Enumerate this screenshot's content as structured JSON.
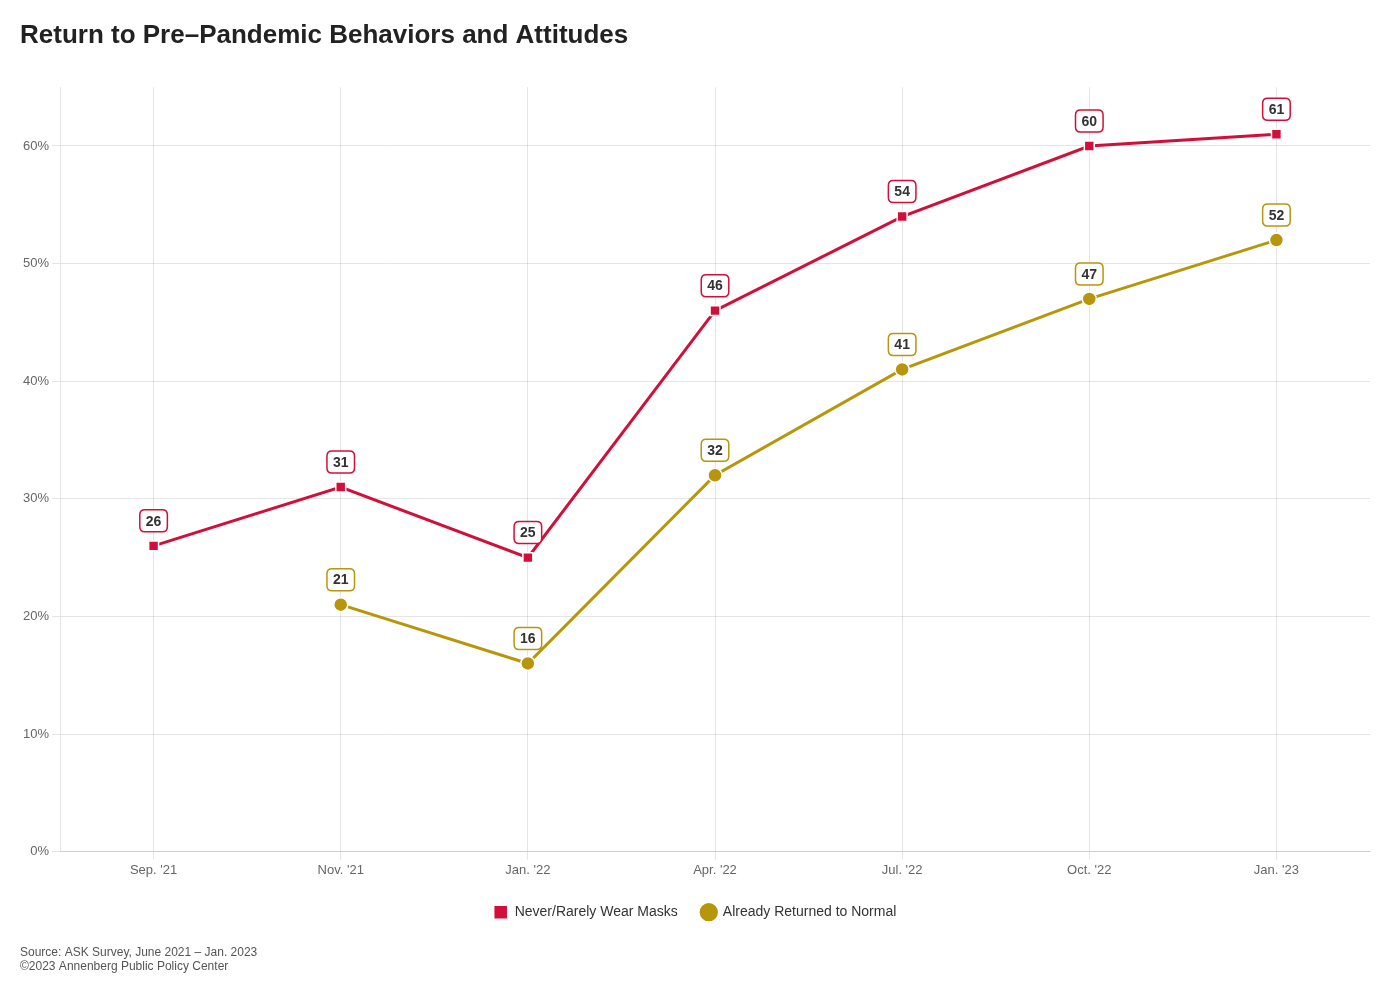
{
  "chart_data": {
    "type": "line",
    "title": "Return to Pre–Pandemic Behaviors and Attitudes",
    "categories": [
      "Sep. '21",
      "Nov. '21",
      "Jan. '22",
      "Apr. '22",
      "Jul. '22",
      "Oct. '22",
      "Jan. '23"
    ],
    "series": [
      {
        "name": "Never/Rarely Wear Masks",
        "color": "#d0103a",
        "marker": "square",
        "values": [
          26,
          31,
          25,
          46,
          54,
          60,
          61
        ]
      },
      {
        "name": "Already Returned to Normal",
        "color": "#b8960c",
        "marker": "circle",
        "values": [
          null,
          21,
          16,
          32,
          41,
          47,
          52
        ]
      }
    ],
    "ylim": [
      0,
      65
    ],
    "yticks": [
      {
        "value": 0,
        "label": "0%"
      },
      {
        "value": 10,
        "label": "10%"
      },
      {
        "value": 20,
        "label": "20%"
      },
      {
        "value": 30,
        "label": "30%"
      },
      {
        "value": 40,
        "label": "40%"
      },
      {
        "value": 50,
        "label": "50%"
      },
      {
        "value": 60,
        "label": "60%"
      }
    ],
    "grid": true,
    "legend": "bottom",
    "data_labels": true,
    "annotations": [
      "Source: ASK Survey, June 2021 – Jan. 2023",
      "©2023 Annenberg Public Policy Center"
    ]
  }
}
